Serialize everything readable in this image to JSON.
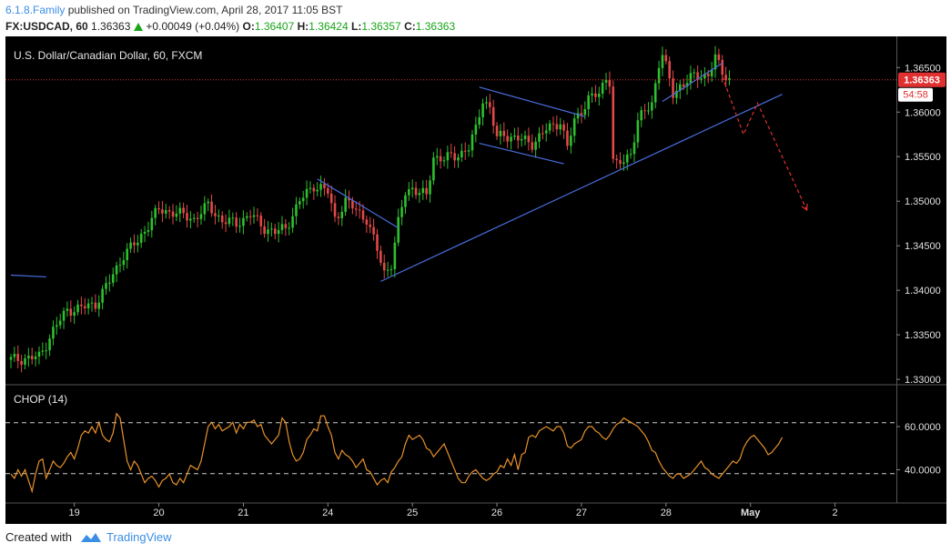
{
  "header": {
    "author": "6.1.8.Family",
    "published_text": "published on TradingView.com, April 28, 2017 11:05 BST",
    "symbol": "FX:USDCAD, 60",
    "last": "1.36363",
    "change": "+0.00049 (+0.04%)",
    "open_label": "O:",
    "open": "1.36407",
    "high_label": "H:",
    "high": "1.36424",
    "low_label": "L:",
    "low": "1.36357",
    "close_label": "C:",
    "close": "1.36363"
  },
  "footer": {
    "created_with": "Created with",
    "brand": "TradingView",
    "logo_icon": "tradingview-cloud-icon"
  },
  "colors": {
    "background": "#000000",
    "up": "#2ec02e",
    "down": "#e34848",
    "trendline": "#4a6ee0",
    "projection": "#e03030",
    "chop_line": "#e8912a",
    "price_tag": "#e03030"
  },
  "chart_data": [
    {
      "type": "candlestick",
      "title": "U.S. Dollar/Canadian Dollar, 60, FXCM",
      "ylim": [
        1.3295,
        1.3685
      ],
      "y_ticks": [
        "1.36500",
        "1.36000",
        "1.35500",
        "1.35000",
        "1.34500",
        "1.34000",
        "1.33500",
        "1.33000"
      ],
      "y_tick_values": [
        1.365,
        1.36,
        1.355,
        1.35,
        1.345,
        1.34,
        1.335,
        1.33
      ],
      "x_ticks": [
        "19",
        "20",
        "21",
        "24",
        "25",
        "26",
        "27",
        "28",
        "May",
        "2"
      ],
      "x_tick_index": [
        18,
        42,
        66,
        90,
        114,
        138,
        162,
        186,
        210,
        234
      ],
      "last_price_label": "1.36363",
      "last_price": 1.36363,
      "countdown_label": "54:58",
      "price_path": [
        [
          0,
          1.3322
        ],
        [
          8,
          1.3325
        ],
        [
          12,
          1.3355
        ],
        [
          16,
          1.3378
        ],
        [
          20,
          1.338
        ],
        [
          24,
          1.3385
        ],
        [
          28,
          1.341
        ],
        [
          32,
          1.344
        ],
        [
          36,
          1.3455
        ],
        [
          40,
          1.348
        ],
        [
          42,
          1.349
        ],
        [
          46,
          1.3488
        ],
        [
          52,
          1.348
        ],
        [
          56,
          1.3495
        ],
        [
          60,
          1.3478
        ],
        [
          64,
          1.3475
        ],
        [
          68,
          1.3485
        ],
        [
          72,
          1.347
        ],
        [
          75,
          1.3465
        ],
        [
          78,
          1.347
        ],
        [
          82,
          1.35
        ],
        [
          86,
          1.3518
        ],
        [
          88,
          1.3515
        ],
        [
          90,
          1.351
        ],
        [
          92,
          1.348
        ],
        [
          95,
          1.35
        ],
        [
          98,
          1.349
        ],
        [
          101,
          1.348
        ],
        [
          104,
          1.3445
        ],
        [
          106,
          1.342
        ],
        [
          108,
          1.343
        ],
        [
          110,
          1.3475
        ],
        [
          112,
          1.351
        ],
        [
          114,
          1.3515
        ],
        [
          116,
          1.351
        ],
        [
          118,
          1.3505
        ],
        [
          120,
          1.355
        ],
        [
          123,
          1.3548
        ],
        [
          126,
          1.355
        ],
        [
          130,
          1.356
        ],
        [
          132,
          1.358
        ],
        [
          134,
          1.3615
        ],
        [
          136,
          1.3605
        ],
        [
          138,
          1.357
        ],
        [
          140,
          1.3575
        ],
        [
          144,
          1.357
        ],
        [
          148,
          1.3565
        ],
        [
          152,
          1.358
        ],
        [
          156,
          1.359
        ],
        [
          158,
          1.356
        ],
        [
          160,
          1.359
        ],
        [
          164,
          1.3615
        ],
        [
          167,
          1.362
        ],
        [
          169,
          1.364
        ],
        [
          170,
          1.3635
        ],
        [
          171,
          1.3545
        ],
        [
          172,
          1.354
        ],
        [
          174,
          1.3545
        ],
        [
          176,
          1.3555
        ],
        [
          178,
          1.359
        ],
        [
          180,
          1.36
        ],
        [
          182,
          1.361
        ],
        [
          184,
          1.3655
        ],
        [
          185,
          1.3665
        ],
        [
          186,
          1.365
        ],
        [
          188,
          1.362
        ],
        [
          190,
          1.363
        ],
        [
          194,
          1.364
        ],
        [
          198,
          1.3642
        ],
        [
          200,
          1.366
        ],
        [
          202,
          1.3645
        ],
        [
          204,
          1.3637
        ]
      ],
      "trendlines": [
        {
          "from": [
            105,
            1.341
          ],
          "to": [
            219,
            1.362
          ]
        },
        {
          "from": [
            87,
            1.3525
          ],
          "to": [
            110,
            1.347
          ]
        },
        {
          "from": [
            133,
            1.3628
          ],
          "to": [
            163,
            1.3595
          ]
        },
        {
          "from": [
            133,
            1.3565
          ],
          "to": [
            157,
            1.3542
          ]
        },
        {
          "from": [
            185,
            1.3612
          ],
          "to": [
            202,
            1.3655
          ]
        },
        {
          "from": [
            0,
            1.3417
          ],
          "to": [
            10,
            1.3415
          ]
        }
      ],
      "projection_path": [
        [
          202,
          1.364
        ],
        [
          208,
          1.3575
        ],
        [
          212,
          1.361
        ],
        [
          226,
          1.349
        ]
      ]
    },
    {
      "type": "line",
      "title": "CHOP (14)",
      "ylim": [
        25,
        79
      ],
      "y_ticks": [
        "60.0000",
        "40.0000"
      ],
      "y_tick_values": [
        60,
        40
      ],
      "levels": [
        61.8,
        38.2
      ],
      "series": [
        {
          "values": [
            38,
            36,
            40,
            37,
            40,
            35,
            30,
            38,
            44,
            45,
            36,
            40,
            44,
            42,
            41,
            43,
            46,
            48,
            45,
            50,
            56,
            58,
            57,
            60,
            57,
            62,
            56,
            54,
            53,
            57,
            66,
            64,
            54,
            44,
            40,
            44,
            42,
            38,
            34,
            36,
            37,
            35,
            32,
            35,
            36,
            38,
            34,
            33,
            36,
            34,
            38,
            42,
            41,
            40,
            44,
            52,
            60,
            62,
            59,
            61,
            58,
            59,
            60,
            62,
            57,
            61,
            59,
            62,
            62,
            63,
            60,
            61,
            56,
            54,
            52,
            54,
            56,
            64,
            62,
            53,
            47,
            44,
            45,
            48,
            54,
            56,
            59,
            58,
            65,
            65,
            60,
            56,
            48,
            45,
            49,
            47,
            46,
            44,
            41,
            43,
            45,
            40,
            39,
            36,
            33,
            35,
            36,
            34,
            39,
            41,
            44,
            46,
            52,
            56,
            54,
            55,
            56,
            54,
            50,
            49,
            46,
            48,
            50,
            52,
            48,
            44,
            40,
            36,
            34,
            34,
            37,
            39,
            40,
            38,
            36,
            35,
            36,
            38,
            39,
            42,
            41,
            45,
            42,
            47,
            40,
            47,
            48,
            55,
            56,
            55,
            58,
            59,
            60,
            59,
            58,
            60,
            60,
            57,
            51,
            50,
            52,
            53,
            54,
            58,
            60,
            60,
            58,
            57,
            55,
            54,
            56,
            59,
            61,
            62,
            64,
            63,
            62,
            61,
            60,
            58,
            56,
            53,
            49,
            48,
            44,
            41,
            39,
            37,
            36,
            38,
            38,
            36,
            37,
            38,
            40,
            42,
            44,
            41,
            40,
            38,
            37,
            36,
            38,
            40,
            42,
            44,
            43,
            45,
            50,
            53,
            55,
            56,
            54,
            52,
            50,
            47,
            48,
            50,
            52,
            55
          ]
        }
      ]
    }
  ]
}
